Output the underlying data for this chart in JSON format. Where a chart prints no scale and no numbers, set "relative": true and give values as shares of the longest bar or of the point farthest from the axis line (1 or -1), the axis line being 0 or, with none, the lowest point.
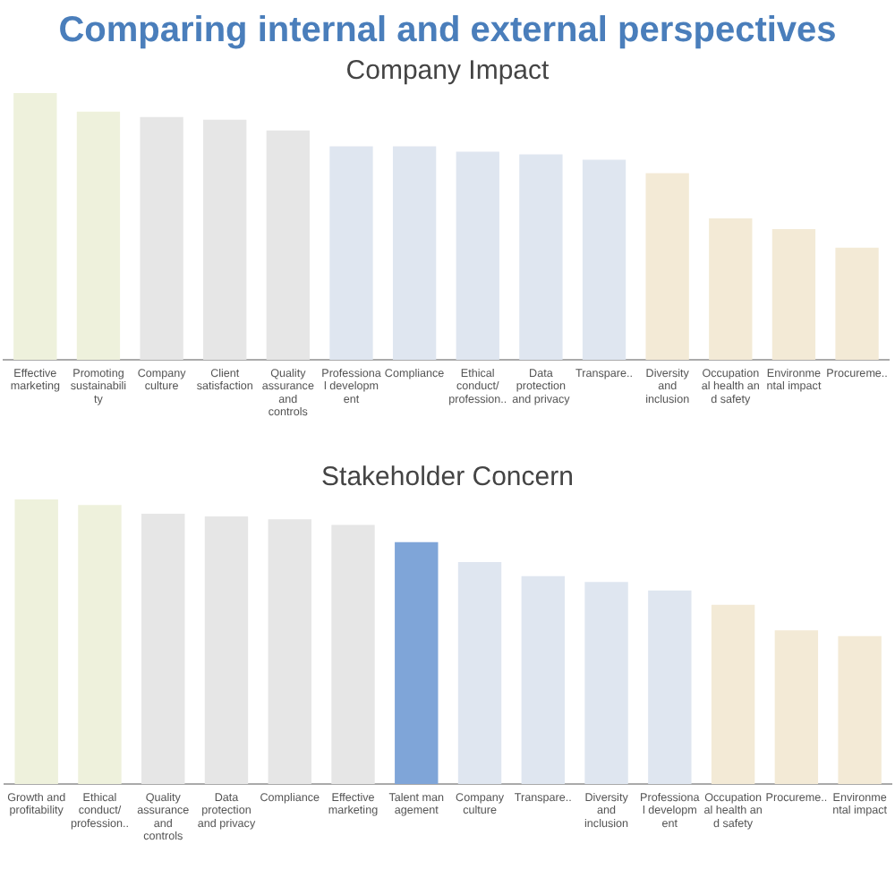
{
  "chart_data": [
    {
      "type": "bar",
      "title": "Comparing internal and external perspectives",
      "subtitle": "Company Impact",
      "relative": true,
      "legend": false,
      "grid": false,
      "categories": [
        "Effective\nmarketing",
        "Promoting\nsustainabili\nty",
        "Company\nculture",
        "Client\nsatisfaction",
        "Quality\nassurance\nand\ncontrols",
        "Professiona\nl developm\nent",
        "Compliance",
        "Ethical\nconduct/\nprofession..",
        "Data\nprotection\nand privacy",
        "Transpare..",
        "Diversity\nand\ninclusion",
        "Occupation\nal health an\nd safety",
        "Environme\nntal impact",
        "Procureme.."
      ],
      "values": [
        1,
        0.93,
        0.91,
        0.9,
        0.86,
        0.8,
        0.8,
        0.78,
        0.77,
        0.75,
        0.7,
        0.53,
        0.49,
        0.42
      ],
      "colors": [
        "#eef1dc",
        "#eef1dc",
        "#e6e6e6",
        "#e6e6e6",
        "#e6e6e6",
        "#dfe6f0",
        "#dfe6f0",
        "#dfe6f0",
        "#dfe6f0",
        "#dfe6f0",
        "#f3ead6",
        "#f3ead6",
        "#f3ead6",
        "#f3ead6"
      ]
    },
    {
      "type": "bar",
      "title": "Stakeholder Concern",
      "relative": true,
      "legend": false,
      "grid": false,
      "categories": [
        "Growth and\nprofitability",
        "Ethical\nconduct/\nprofession..",
        "Quality\nassurance\nand\ncontrols",
        "Data\nprotection\nand privacy",
        "Compliance",
        "Effective\nmarketing",
        "Talent man\nagement",
        "Company\nculture",
        "Transpare..",
        "Diversity\nand\ninclusion",
        "Professiona\nl developm\nent",
        "Occupation\nal health an\nd safety",
        "Procureme..",
        "Environme\nntal impact"
      ],
      "values": [
        1,
        0.98,
        0.95,
        0.94,
        0.93,
        0.91,
        0.85,
        0.78,
        0.73,
        0.71,
        0.68,
        0.63,
        0.54,
        0.52
      ],
      "colors": [
        "#eef1dc",
        "#eef1dc",
        "#e6e6e6",
        "#e6e6e6",
        "#e6e6e6",
        "#e6e6e6",
        "#7fa5d8",
        "#dfe6f0",
        "#dfe6f0",
        "#dfe6f0",
        "#dfe6f0",
        "#f3ead6",
        "#f3ead6",
        "#f3ead6"
      ]
    }
  ]
}
